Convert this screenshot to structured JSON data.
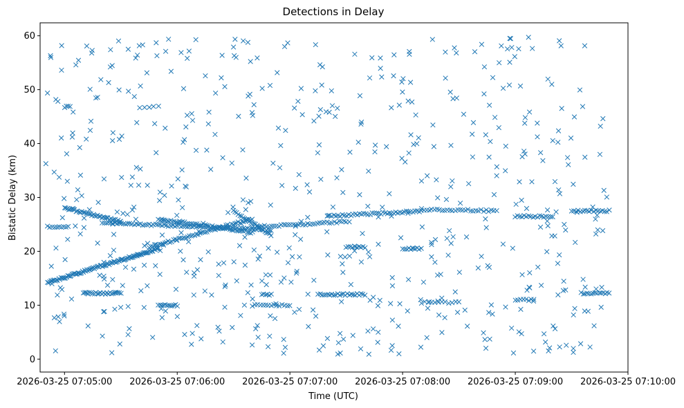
{
  "chart_data": {
    "type": "scatter",
    "title": "Detections in Delay",
    "xlabel": "Time (UTC)",
    "ylabel": "Bistatic Delay (km)",
    "xlim": [
      "2026-03-25 07:04:47",
      "2026-03-25 07:10:00"
    ],
    "ylim": [
      -2.4,
      62.4
    ],
    "x_ticks": [
      "2026-03-25 07:05:00",
      "2026-03-25 07:06:00",
      "2026-03-25 07:07:00",
      "2026-03-25 07:08:00",
      "2026-03-25 07:09:00",
      "2026-03-25 07:10:00"
    ],
    "y_ticks": [
      0,
      10,
      20,
      30,
      40,
      50,
      60
    ],
    "marker": "x",
    "color": "#1f77b4",
    "grid": false,
    "legend": "none",
    "series": [
      {
        "x_start": "2026-03-25 07:04:50",
        "x_end": "2026-03-25 07:09:50",
        "tracks": [
          {
            "from": [
              "2026-03-25 07:04:51",
              14.2
            ],
            "to": [
              "2026-03-25 07:05:50",
              20.5
            ],
            "count": 100
          },
          {
            "from": [
              "2026-03-25 07:05:45",
              20.8
            ],
            "to": [
              "2026-03-25 07:06:40",
              26.0
            ],
            "count": 60
          },
          {
            "from": [
              "2026-03-25 07:05:00",
              28.0
            ],
            "to": [
              "2026-03-25 07:05:30",
              25.5
            ],
            "count": 40
          },
          {
            "from": [
              "2026-03-25 07:05:20",
              25.3
            ],
            "to": [
              "2026-03-25 07:06:50",
              24.0
            ],
            "count": 80
          },
          {
            "from": [
              "2026-03-25 07:05:50",
              26.0
            ],
            "to": [
              "2026-03-25 07:06:40",
              23.5
            ],
            "count": 55
          },
          {
            "from": [
              "2026-03-25 07:06:30",
              27.5
            ],
            "to": [
              "2026-03-25 07:06:50",
              23.0
            ],
            "count": 25
          },
          {
            "from": [
              "2026-03-25 07:06:40",
              24.5
            ],
            "to": [
              "2026-03-25 07:07:30",
              25.5
            ],
            "count": 40
          },
          {
            "from": [
              "2026-03-25 07:07:20",
              26.5
            ],
            "to": [
              "2026-03-25 07:08:10",
              27.5
            ],
            "count": 45
          },
          {
            "from": [
              "2026-03-25 07:08:10",
              27.8
            ],
            "to": [
              "2026-03-25 07:08:50",
              27.5
            ],
            "count": 30
          },
          {
            "from": [
              "2026-03-25 07:09:00",
              26.5
            ],
            "to": [
              "2026-03-25 07:09:20",
              26.5
            ],
            "count": 18
          },
          {
            "from": [
              "2026-03-25 07:09:30",
              27.5
            ],
            "to": [
              "2026-03-25 07:09:50",
              27.5
            ],
            "count": 18
          },
          {
            "from": [
              "2026-03-25 07:04:51",
              24.6
            ],
            "to": [
              "2026-03-25 07:05:02",
              24.6
            ],
            "count": 10
          },
          {
            "from": [
              "2026-03-25 07:05:10",
              12.2
            ],
            "to": [
              "2026-03-25 07:05:30",
              12.2
            ],
            "count": 25
          },
          {
            "from": [
              "2026-03-25 07:05:50",
              10.0
            ],
            "to": [
              "2026-03-25 07:06:00",
              10.0
            ],
            "count": 12
          },
          {
            "from": [
              "2026-03-25 07:06:40",
              10.0
            ],
            "to": [
              "2026-03-25 07:07:00",
              10.0
            ],
            "count": 15
          },
          {
            "from": [
              "2026-03-25 07:06:45",
              12.0
            ],
            "to": [
              "2026-03-25 07:06:50",
              12.0
            ],
            "count": 6
          },
          {
            "from": [
              "2026-03-25 07:07:15",
              12.0
            ],
            "to": [
              "2026-03-25 07:07:40",
              12.0
            ],
            "count": 25
          },
          {
            "from": [
              "2026-03-25 07:07:30",
              20.8
            ],
            "to": [
              "2026-03-25 07:07:40",
              20.8
            ],
            "count": 10
          },
          {
            "from": [
              "2026-03-25 07:08:00",
              20.5
            ],
            "to": [
              "2026-03-25 07:08:10",
              20.5
            ],
            "count": 10
          },
          {
            "from": [
              "2026-03-25 07:08:10",
              10.5
            ],
            "to": [
              "2026-03-25 07:08:30",
              10.5
            ],
            "count": 12
          },
          {
            "from": [
              "2026-03-25 07:09:00",
              11.0
            ],
            "to": [
              "2026-03-25 07:09:10",
              11.0
            ],
            "count": 8
          },
          {
            "from": [
              "2026-03-25 07:09:35",
              12.2
            ],
            "to": [
              "2026-03-25 07:09:50",
              12.2
            ],
            "count": 15
          },
          {
            "from": [
              "2026-03-25 07:05:00",
              46.8
            ],
            "to": [
              "2026-03-25 07:05:03",
              46.8
            ],
            "count": 4
          },
          {
            "from": [
              "2026-03-25 07:05:40",
              46.8
            ],
            "to": [
              "2026-03-25 07:05:50",
              46.8
            ],
            "count": 5
          }
        ],
        "scatter_count": 620,
        "scatter_range": [
          0.5,
          60
        ]
      }
    ]
  }
}
